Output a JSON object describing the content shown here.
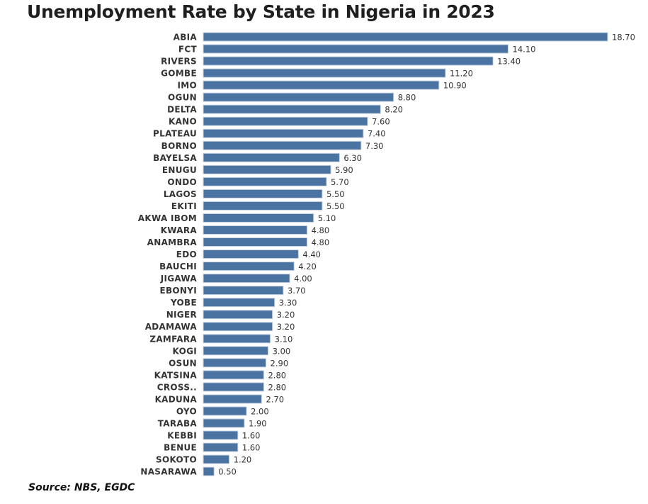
{
  "chart_data": {
    "type": "bar",
    "orientation": "horizontal",
    "title": "Unemployment Rate by State in Nigeria in 2023",
    "source": "Source: NBS, EGDC",
    "xlabel": "",
    "ylabel": "",
    "xlim": [
      0,
      18.7
    ],
    "grid": false,
    "color": "#4a73a2",
    "categories": [
      "ABIA",
      "FCT",
      "RIVERS",
      "GOMBE",
      "IMO",
      "OGUN",
      "DELTA",
      "KANO",
      "PLATEAU",
      "BORNO",
      "BAYELSA",
      "ENUGU",
      "ONDO",
      "LAGOS",
      "EKITI",
      "AKWA IBOM",
      "KWARA",
      "ANAMBRA",
      "EDO",
      "BAUCHI",
      "JIGAWA",
      "EBONYI",
      "YOBE",
      "NIGER",
      "ADAMAWA",
      "ZAMFARA",
      "KOGI",
      "OSUN",
      "KATSINA",
      "CROSS..",
      "KADUNA",
      "OYO",
      "TARABA",
      "KEBBI",
      "BENUE",
      "SOKOTO",
      "NASARAWA"
    ],
    "values": [
      18.7,
      14.1,
      13.4,
      11.2,
      10.9,
      8.8,
      8.2,
      7.6,
      7.4,
      7.3,
      6.3,
      5.9,
      5.7,
      5.5,
      5.5,
      5.1,
      4.8,
      4.8,
      4.4,
      4.2,
      4.0,
      3.7,
      3.3,
      3.2,
      3.2,
      3.1,
      3.0,
      2.9,
      2.8,
      2.8,
      2.7,
      2.0,
      1.9,
      1.6,
      1.6,
      1.2,
      0.5
    ]
  }
}
